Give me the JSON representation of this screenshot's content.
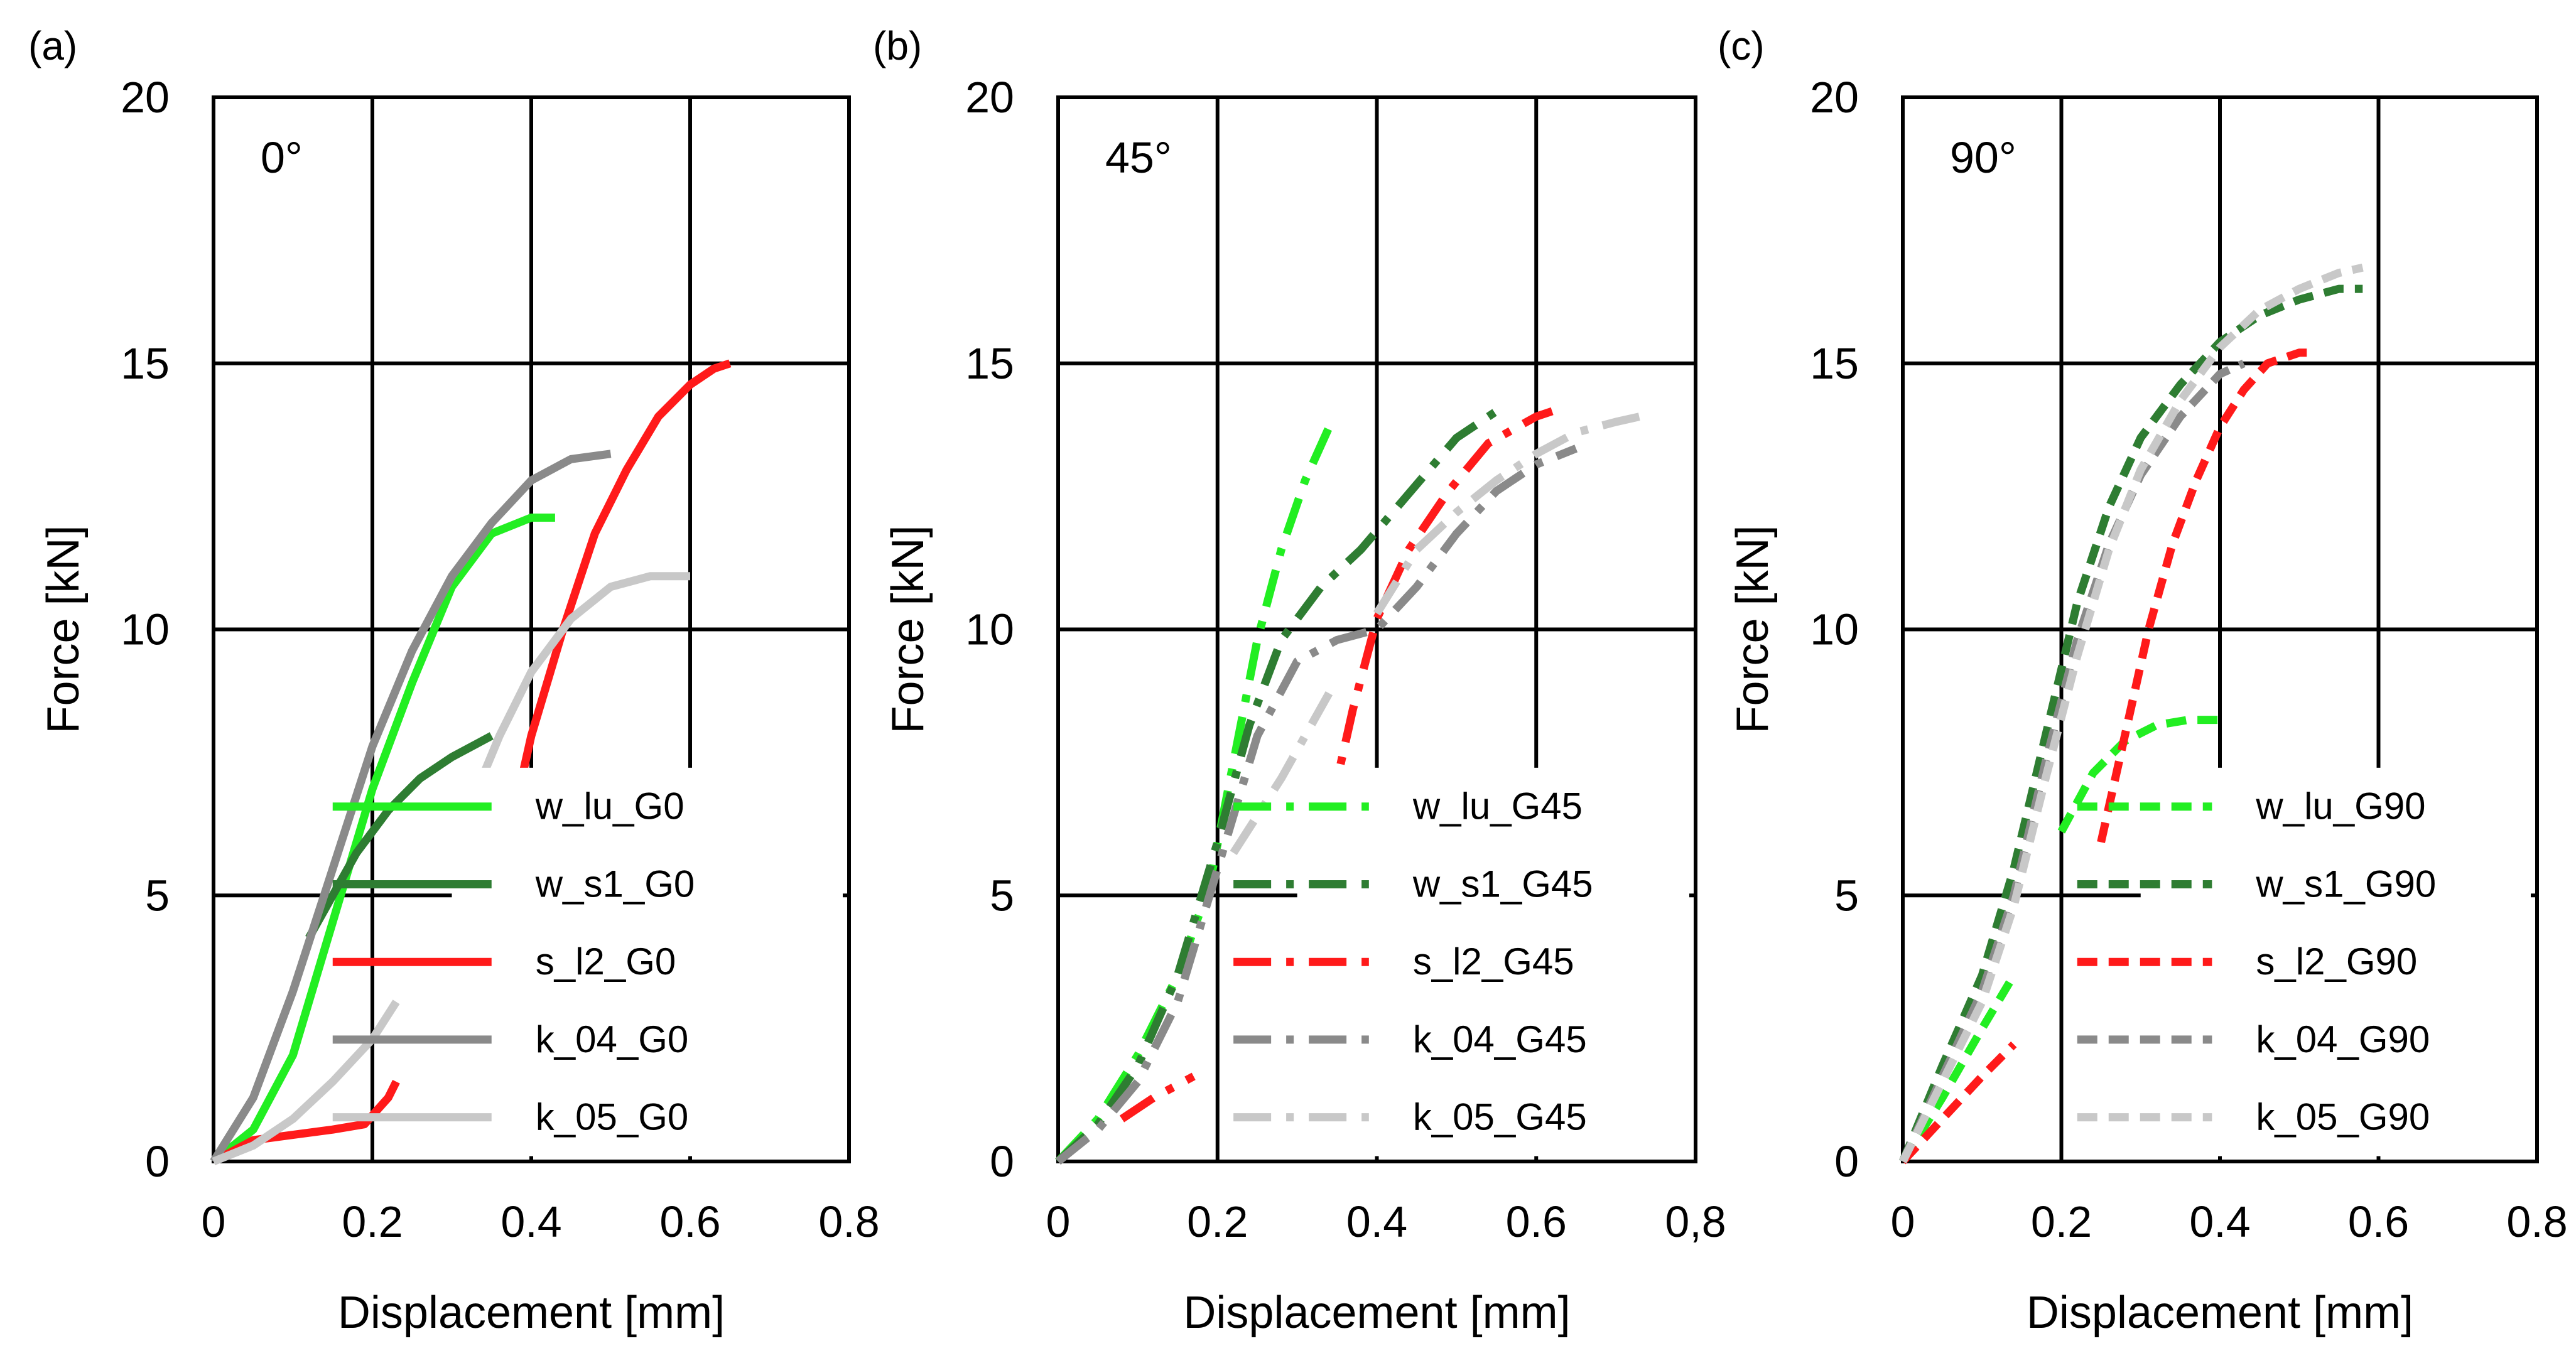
{
  "figure": {
    "panels": [
      {
        "id": "a",
        "panel_label": "(a)",
        "angle_label": "0°",
        "xlabel": "Displacement [mm]",
        "ylabel": "Force [kN]",
        "x_ticks": [
          "0",
          "0.2",
          "0.4",
          "0.6",
          "0.8"
        ],
        "y_ticks": [
          "0",
          "5",
          "10",
          "15",
          "20"
        ],
        "legend": [
          "w_lu_G0",
          "w_s1_G0",
          "s_l2_G0",
          "k_04_G0",
          "k_05_G0"
        ]
      },
      {
        "id": "b",
        "panel_label": "(b)",
        "angle_label": "45°",
        "xlabel": "Displacement [mm]",
        "ylabel": "Force [kN]",
        "x_ticks": [
          "0",
          "0.2",
          "0.4",
          "0.6",
          "0,8"
        ],
        "y_ticks": [
          "0",
          "5",
          "10",
          "15",
          "20"
        ],
        "legend": [
          "w_lu_G45",
          "w_s1_G45",
          "s_l2_G45",
          "k_04_G45",
          "k_05_G45"
        ]
      },
      {
        "id": "c",
        "panel_label": "(c)",
        "angle_label": "90°",
        "xlabel": "Displacement [mm]",
        "ylabel": "Force [kN]",
        "x_ticks": [
          "0",
          "0.2",
          "0.4",
          "0.6",
          "0.8"
        ],
        "y_ticks": [
          "0",
          "5",
          "10",
          "15",
          "20"
        ],
        "legend": [
          "w_lu_G90",
          "w_s1_G90",
          "s_l2_G90",
          "k_04_G90",
          "k_05_G90"
        ]
      }
    ]
  },
  "colors": {
    "bright_green": "#22ee22",
    "dark_green": "#2e7d32",
    "red": "#ff1a1a",
    "dark_gray": "#8a8a8a",
    "light_gray": "#c8c8c8"
  },
  "chart_data": [
    {
      "type": "line",
      "title": "",
      "xlabel": "Displacement [mm]",
      "ylabel": "Force [kN]",
      "xlim": [
        0,
        0.8
      ],
      "ylim": [
        0,
        20
      ],
      "grid": true,
      "legend_position": "bottom-right",
      "series": [
        {
          "name": "w_lu_G0",
          "color": "#22ee22",
          "style": "solid",
          "x": [
            0,
            0.05,
            0.1,
            0.15,
            0.2,
            0.25,
            0.3,
            0.35,
            0.4,
            0.43
          ],
          "y": [
            0,
            0.6,
            2.0,
            4.5,
            7.0,
            9.0,
            10.8,
            11.8,
            12.1,
            12.1
          ]
        },
        {
          "name": "w_s1_G0",
          "color": "#2e7d32",
          "style": "solid",
          "x": [
            0.12,
            0.18,
            0.22,
            0.26,
            0.3,
            0.35
          ],
          "y": [
            4.2,
            5.8,
            6.6,
            7.2,
            7.6,
            8.0
          ]
        },
        {
          "name": "s_l2_G0",
          "color": "#ff1a1a",
          "style": "solid",
          "x": [
            0,
            0.05,
            0.1,
            0.15,
            0.19,
            0.22,
            0.23
          ],
          "y": [
            0,
            0.4,
            0.5,
            0.6,
            0.7,
            1.2,
            1.5
          ]
        },
        {
          "name": "s_l2_G0",
          "color": "#ff1a1a",
          "style": "solid",
          "x": [
            0.37,
            0.4,
            0.44,
            0.48,
            0.52,
            0.56,
            0.6,
            0.63,
            0.65
          ],
          "y": [
            6.0,
            8.0,
            10.0,
            11.8,
            13.0,
            14.0,
            14.6,
            14.9,
            15.0
          ]
        },
        {
          "name": "k_04_G0",
          "color": "#8a8a8a",
          "style": "solid",
          "x": [
            0,
            0.05,
            0.1,
            0.15,
            0.2,
            0.25,
            0.3,
            0.35,
            0.4,
            0.45,
            0.5
          ],
          "y": [
            0,
            1.2,
            3.2,
            5.5,
            7.8,
            9.6,
            11.0,
            12.0,
            12.8,
            13.2,
            13.3
          ]
        },
        {
          "name": "k_05_G0",
          "color": "#c8c8c8",
          "style": "solid",
          "x": [
            0,
            0.05,
            0.1,
            0.15,
            0.2,
            0.23
          ],
          "y": [
            0,
            0.3,
            0.8,
            1.5,
            2.3,
            3.0
          ]
        },
        {
          "name": "k_05_G0",
          "color": "#c8c8c8",
          "style": "solid",
          "x": [
            0.31,
            0.36,
            0.4,
            0.45,
            0.5,
            0.55,
            0.6
          ],
          "y": [
            6.2,
            8.0,
            9.2,
            10.2,
            10.8,
            11.0,
            11.0
          ]
        }
      ]
    },
    {
      "type": "line",
      "title": "",
      "xlabel": "Displacement [mm]",
      "ylabel": "Force [kN]",
      "xlim": [
        0,
        0.8
      ],
      "ylim": [
        0,
        20
      ],
      "grid": true,
      "legend_position": "bottom-right",
      "series": [
        {
          "name": "w_lu_G45",
          "color": "#22ee22",
          "style": "dashdot",
          "x": [
            0,
            0.05,
            0.1,
            0.15,
            0.19,
            0.22,
            0.25,
            0.28,
            0.31,
            0.34
          ],
          "y": [
            0,
            0.8,
            2.0,
            3.5,
            5.2,
            7.5,
            9.8,
            11.5,
            12.8,
            13.8
          ]
        },
        {
          "name": "w_s1_G45",
          "color": "#2e7d32",
          "style": "dashdot",
          "x": [
            0,
            0.05,
            0.1,
            0.15,
            0.2,
            0.24,
            0.28,
            0.33,
            0.38,
            0.42,
            0.46,
            0.5,
            0.55
          ],
          "y": [
            0,
            0.7,
            1.8,
            3.5,
            6.0,
            8.2,
            9.8,
            10.8,
            11.5,
            12.2,
            12.9,
            13.6,
            14.1
          ]
        },
        {
          "name": "s_l2_G45",
          "color": "#ff1a1a",
          "style": "dashdot",
          "x": [
            0.08,
            0.12,
            0.17
          ],
          "y": [
            0.8,
            1.2,
            1.6
          ]
        },
        {
          "name": "s_l2_G45",
          "color": "#ff1a1a",
          "style": "dashdot",
          "x": [
            0.34,
            0.37,
            0.4,
            0.44,
            0.49,
            0.54,
            0.6,
            0.62
          ],
          "y": [
            6.5,
            8.5,
            10.2,
            11.5,
            12.6,
            13.5,
            14.0,
            14.1
          ]
        },
        {
          "name": "k_04_G45",
          "color": "#8a8a8a",
          "style": "dashdot",
          "x": [
            0,
            0.05,
            0.1,
            0.15,
            0.2,
            0.25,
            0.3,
            0.35,
            0.4,
            0.45,
            0.5,
            0.55,
            0.6,
            0.65
          ],
          "y": [
            0,
            0.6,
            1.5,
            3.0,
            5.5,
            8.0,
            9.4,
            9.8,
            10.0,
            10.8,
            11.8,
            12.6,
            13.1,
            13.4
          ]
        },
        {
          "name": "k_05_G45",
          "color": "#c8c8c8",
          "style": "dashdot",
          "x": [
            0.22,
            0.28,
            0.34
          ],
          "y": [
            5.8,
            7.2,
            8.8
          ]
        },
        {
          "name": "k_05_G45",
          "color": "#c8c8c8",
          "style": "dashdot",
          "x": [
            0.4,
            0.45,
            0.5,
            0.55,
            0.6,
            0.65,
            0.7,
            0.73
          ],
          "y": [
            10.3,
            11.5,
            12.2,
            12.8,
            13.3,
            13.7,
            13.9,
            14.0
          ]
        }
      ]
    },
    {
      "type": "line",
      "title": "",
      "xlabel": "Displacement [mm]",
      "ylabel": "Force [kN]",
      "xlim": [
        0,
        0.8
      ],
      "ylim": [
        0,
        20
      ],
      "grid": true,
      "legend_position": "bottom-right",
      "series": [
        {
          "name": "w_lu_G90",
          "color": "#22ee22",
          "style": "dashed",
          "x": [
            0,
            0.05,
            0.1,
            0.14
          ],
          "y": [
            0,
            1.2,
            2.5,
            3.5
          ]
        },
        {
          "name": "w_lu_G90",
          "color": "#22ee22",
          "style": "dashed",
          "x": [
            0.2,
            0.24,
            0.28,
            0.32,
            0.36,
            0.4
          ],
          "y": [
            6.2,
            7.3,
            7.9,
            8.2,
            8.3,
            8.3
          ]
        },
        {
          "name": "w_s1_G90",
          "color": "#2e7d32",
          "style": "dashed",
          "x": [
            0,
            0.05,
            0.1,
            0.14,
            0.18,
            0.22,
            0.26,
            0.3,
            0.35,
            0.4,
            0.45,
            0.5,
            0.55,
            0.58
          ],
          "y": [
            0,
            1.8,
            3.5,
            5.5,
            8.0,
            10.5,
            12.3,
            13.6,
            14.6,
            15.4,
            15.9,
            16.2,
            16.4,
            16.4
          ]
        },
        {
          "name": "s_l2_G90",
          "color": "#ff1a1a",
          "style": "dashed",
          "x": [
            0,
            0.05,
            0.1,
            0.14
          ],
          "y": [
            0,
            0.8,
            1.6,
            2.2
          ]
        },
        {
          "name": "s_l2_G90",
          "color": "#ff1a1a",
          "style": "dashed",
          "x": [
            0.25,
            0.28,
            0.31,
            0.34,
            0.37,
            0.4,
            0.43,
            0.46,
            0.5,
            0.52
          ],
          "y": [
            6.0,
            8.0,
            10.0,
            11.6,
            12.8,
            13.8,
            14.5,
            15.0,
            15.2,
            15.2
          ]
        },
        {
          "name": "k_04_G90",
          "color": "#8a8a8a",
          "style": "dashed",
          "x": [
            0,
            0.05,
            0.1,
            0.14,
            0.18,
            0.22,
            0.26,
            0.3,
            0.35,
            0.4,
            0.43
          ],
          "y": [
            0,
            1.6,
            3.2,
            5.0,
            7.5,
            9.8,
            11.6,
            12.9,
            14.0,
            14.8,
            15.0
          ]
        },
        {
          "name": "k_05_G90",
          "color": "#c8c8c8",
          "style": "dashed",
          "x": [
            0,
            0.05,
            0.1,
            0.14,
            0.18,
            0.22,
            0.26,
            0.3,
            0.35,
            0.4,
            0.45,
            0.5,
            0.55,
            0.58
          ],
          "y": [
            0,
            1.5,
            3.0,
            4.8,
            7.2,
            9.5,
            11.5,
            13.0,
            14.3,
            15.3,
            16.0,
            16.4,
            16.7,
            16.8
          ]
        }
      ]
    }
  ]
}
